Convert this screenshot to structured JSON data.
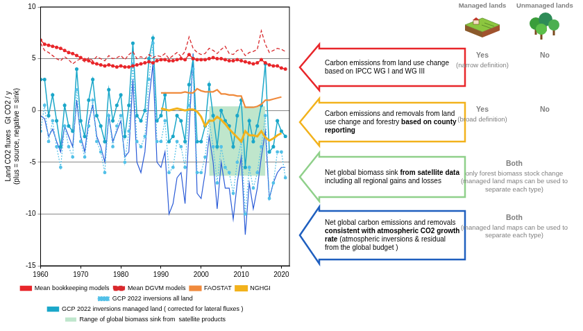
{
  "chart_data": {
    "type": "line",
    "y_label": [
      "Land CO2 fluxes   Gt CO2 / y",
      "(plus = source, negative = sink)"
    ],
    "xlim": [
      1960,
      2022
    ],
    "xticks": [
      1960,
      1970,
      1980,
      1990,
      2000,
      2010,
      2020
    ],
    "ylim": [
      -15,
      10
    ],
    "yticks": [
      -15,
      -10,
      -5,
      0,
      5,
      10
    ],
    "grid": "y",
    "legend": "bottom",
    "x": [
      1960,
      1961,
      1962,
      1963,
      1964,
      1965,
      1966,
      1967,
      1968,
      1969,
      1970,
      1971,
      1972,
      1973,
      1974,
      1975,
      1976,
      1977,
      1978,
      1979,
      1980,
      1981,
      1982,
      1983,
      1984,
      1985,
      1986,
      1987,
      1988,
      1989,
      1990,
      1991,
      1992,
      1993,
      1994,
      1995,
      1996,
      1997,
      1998,
      1999,
      2000,
      2001,
      2002,
      2003,
      2004,
      2005,
      2006,
      2007,
      2008,
      2009,
      2010,
      2011,
      2012,
      2013,
      2014,
      2015,
      2016,
      2017,
      2018,
      2019,
      2020,
      2021
    ],
    "series": [
      {
        "name": "Mean bookkeeping models",
        "color": "#e8262a",
        "marker": "circle",
        "line_style": "solid",
        "values": [
          6.8,
          6.4,
          6.3,
          6.2,
          6.1,
          6.0,
          5.8,
          5.6,
          5.5,
          5.3,
          5.1,
          4.9,
          4.8,
          4.6,
          4.5,
          4.4,
          4.3,
          4.4,
          4.3,
          4.2,
          4.3,
          4.2,
          4.2,
          4.3,
          4.4,
          4.5,
          4.6,
          4.7,
          4.6,
          4.8,
          4.9,
          4.9,
          4.8,
          4.8,
          4.9,
          5.0,
          4.9,
          5.4,
          5.0,
          4.9,
          4.9,
          4.9,
          5.0,
          5.1,
          5.0,
          5.0,
          4.9,
          4.8,
          4.8,
          4.9,
          4.8,
          4.7,
          4.6,
          4.5,
          4.6,
          4.9,
          4.6,
          4.4,
          4.3,
          4.3,
          4.1,
          4.0
        ]
      },
      {
        "name": "Mean DGVM models",
        "color": "#d9282c",
        "marker": "none",
        "line_style": "dashed",
        "values": [
          6.5,
          5.8,
          5.6,
          5.3,
          5.0,
          4.8,
          5.2,
          4.9,
          4.5,
          4.8,
          5.0,
          4.7,
          5.1,
          4.8,
          5.2,
          5.0,
          4.8,
          5.3,
          5.0,
          5.1,
          5.3,
          4.9,
          5.4,
          5.7,
          5.0,
          5.2,
          5.0,
          5.4,
          5.1,
          5.3,
          5.2,
          5.5,
          5.0,
          5.3,
          5.6,
          5.2,
          5.7,
          7.1,
          6.0,
          5.6,
          5.4,
          5.5,
          6.0,
          5.8,
          5.5,
          5.9,
          6.2,
          5.5,
          5.4,
          5.8,
          5.9,
          5.3,
          5.6,
          5.7,
          5.9,
          7.7,
          6.4,
          5.6,
          5.8,
          6.0,
          5.9,
          5.7
        ]
      },
      {
        "name": "FAOSTAT",
        "color": "#f08a3c",
        "marker": "none",
        "line_style": "solid",
        "values": [
          null,
          null,
          null,
          null,
          null,
          null,
          null,
          null,
          null,
          null,
          null,
          null,
          null,
          null,
          null,
          null,
          null,
          null,
          null,
          null,
          null,
          null,
          null,
          null,
          null,
          null,
          null,
          null,
          null,
          null,
          1.7,
          1.7,
          1.7,
          1.7,
          1.7,
          1.7,
          1.8,
          1.7,
          1.7,
          2.1,
          1.9,
          1.8,
          1.8,
          1.8,
          2.0,
          1.6,
          1.6,
          1.5,
          1.5,
          1.4,
          1.4,
          0.3,
          0.3,
          0.3,
          0.4,
          0.6,
          1.0,
          1.0,
          1.1,
          1.2,
          1.3,
          null
        ]
      },
      {
        "name": "NGHGI",
        "color": "#f2b21c",
        "marker": "none",
        "line_style": "solid",
        "values": [
          null,
          null,
          null,
          null,
          null,
          null,
          null,
          null,
          null,
          null,
          null,
          null,
          null,
          null,
          null,
          null,
          null,
          null,
          null,
          null,
          null,
          null,
          null,
          null,
          null,
          null,
          null,
          null,
          null,
          null,
          0.2,
          0.1,
          0.0,
          0.1,
          0.2,
          0.1,
          0.0,
          0.1,
          0.1,
          -0.1,
          -0.6,
          -1.5,
          -1.0,
          -1.0,
          -0.6,
          -0.9,
          -1.3,
          -1.8,
          -2.2,
          -2.6,
          -3.0,
          -2.0,
          -2.4,
          -2.4,
          -2.5,
          -2.0,
          -2.6,
          -2.9,
          -2.7,
          -2.4,
          -2.2,
          null
        ]
      },
      {
        "name": "GCP 2022 inversions all land",
        "color": "#52c0e8",
        "marker": "circle",
        "line_style": "dotted",
        "values": [
          -2.0,
          0.5,
          -3.0,
          -1.0,
          -3.5,
          -5.5,
          -1.5,
          -3.5,
          -4.5,
          2.0,
          -3.0,
          -4.5,
          -1.5,
          1.0,
          -3.0,
          -4.0,
          -6.0,
          -0.5,
          -3.5,
          -1.5,
          -0.5,
          -5.0,
          -2.0,
          4.5,
          -3.0,
          -3.5,
          -2.5,
          3.0,
          6.5,
          -3.0,
          -3.0,
          -1.0,
          -6.0,
          -5.5,
          -3.0,
          -3.5,
          -5.5,
          0.5,
          4.0,
          -6.0,
          -6.0,
          -4.5,
          -1.0,
          -3.5,
          -7.0,
          -3.5,
          -5.5,
          -6.0,
          -8.0,
          -5.0,
          -3.0,
          -10.0,
          -5.5,
          -7.5,
          -6.0,
          -3.5,
          -0.5,
          -8.5,
          -7.0,
          -4.0,
          -4.0,
          -6.5
        ]
      },
      {
        "name": "GCP 2022 inversions managed land ( corrected for lateral fluxes )",
        "color": "#1ba7c9",
        "marker": "circle",
        "line_style": "solid",
        "values": [
          3.0,
          3.0,
          -0.5,
          1.5,
          -1.0,
          -3.5,
          0.5,
          -1.5,
          -2.0,
          4.0,
          -1.0,
          -2.5,
          1.0,
          3.0,
          -0.5,
          -1.5,
          -3.0,
          2.0,
          -1.0,
          0.5,
          1.5,
          -2.5,
          0.5,
          6.5,
          -0.5,
          -1.0,
          0.0,
          5.0,
          7.0,
          -1.0,
          -0.5,
          1.5,
          -3.0,
          -2.5,
          -0.5,
          -1.0,
          -3.0,
          2.5,
          5.0,
          -3.0,
          -3.0,
          -1.5,
          2.5,
          -0.5,
          -3.5,
          0.0,
          -1.0,
          -1.5,
          -3.5,
          -0.5,
          1.0,
          -5.5,
          -1.0,
          -3.0,
          -1.5,
          0.5,
          4.5,
          -4.0,
          -3.5,
          -1.0,
          -2.0,
          -2.5
        ]
      },
      {
        "color": "#2a5bd7",
        "marker": "none",
        "line_style": "solid",
        "values": [
          -0.5,
          -0.8,
          -2.5,
          -1.8,
          -3.0,
          -4.0,
          -1.5,
          -2.5,
          -3.5,
          1.0,
          -2.5,
          -4.0,
          -1.0,
          0.5,
          -2.5,
          -3.5,
          -5.0,
          -0.5,
          -3.0,
          -2.0,
          -1.0,
          -4.5,
          -4.0,
          3.0,
          -5.0,
          -6.0,
          -4.0,
          1.0,
          4.5,
          -5.0,
          -5.5,
          -4.0,
          -10.0,
          -9.0,
          -6.5,
          -6.0,
          -9.0,
          -2.0,
          5.5,
          -8.0,
          -8.5,
          -6.0,
          -2.5,
          -5.0,
          -9.5,
          -5.0,
          -7.5,
          -7.5,
          -10.5,
          -7.0,
          -4.5,
          -12.0,
          -7.0,
          -9.5,
          -7.5,
          -4.5,
          -2.0,
          -8.5,
          -7.0,
          -6.0,
          -5.5,
          -5.5
        ]
      }
    ],
    "areas": [
      {
        "name": "Range of global biomass sink from  satellite products",
        "color": "#bfe6cc",
        "x": [
          2002,
          2016
        ],
        "low": [
          -6.3,
          -6.3
        ],
        "high": [
          0.4,
          0.4
        ]
      }
    ]
  },
  "diagram": {
    "columns": [
      "Managed lands",
      "Unmanaged lands"
    ],
    "rows": [
      {
        "color": "#e8262a",
        "text": [
          {
            "text": "Carbon emissions from land use change based on IPCC WG I and WG III",
            "bold": false
          }
        ],
        "managed": {
          "label": "Yes",
          "note": [
            "(narrow definition)"
          ]
        },
        "unmanaged": {
          "label": "No",
          "note": []
        }
      },
      {
        "color": "#f2b21c",
        "text": [
          {
            "text": "Carbon emissions and removals from land use change and forestry ",
            "bold": false
          },
          {
            "text": "based on county reporting",
            "bold": true
          }
        ],
        "managed": {
          "label": "Yes",
          "note": [
            "(broad definition)"
          ]
        },
        "unmanaged": {
          "label": "No",
          "note": []
        }
      },
      {
        "color": "#8fd08a",
        "text": [
          {
            "text": "Net global biomass sink ",
            "bold": false
          },
          {
            "text": "from satellite data",
            "bold": true
          },
          {
            "text": " including all regional gains and losses",
            "bold": false
          }
        ],
        "both": {
          "label": "Both",
          "note": [
            "only forest biomass stock change",
            "(managed land maps can be used to separate each type)"
          ]
        }
      },
      {
        "color": "#1f5fbf",
        "text": [
          {
            "text": "Net global carbon emissions and removals ",
            "bold": false
          },
          {
            "text": "consistent with atmospheric CO2 growth rate",
            "bold": true
          },
          {
            "text": " (atmospheric inversions & residual from the global budget )",
            "bold": false
          }
        ],
        "both": {
          "label": "Both",
          "note": [
            "(managed land maps can be used to separate each type)"
          ]
        }
      }
    ]
  }
}
